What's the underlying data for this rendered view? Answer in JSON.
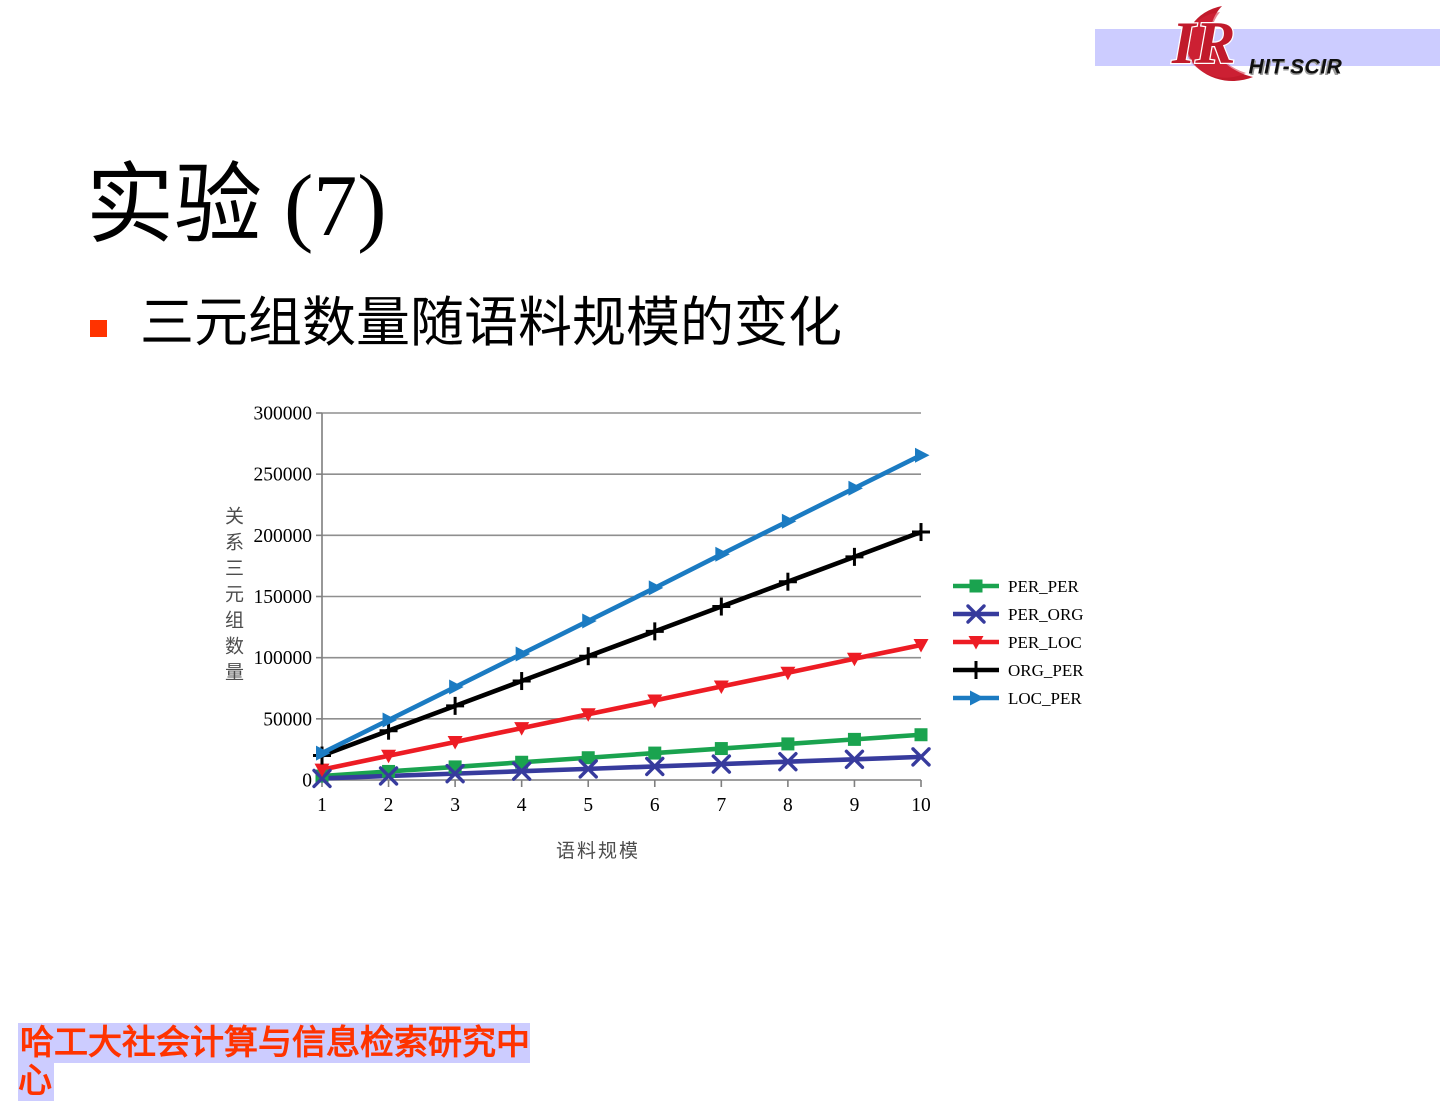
{
  "slide": {
    "title": "实验 (7)",
    "bullet": "三元组数量随语料规模的变化",
    "footer": "哈工大社会计算与信息检索研究中心",
    "accent_red": "#FF3300",
    "highlight_lavender": "#CCCCFF"
  },
  "logo": {
    "monogram": "IR",
    "org": "HIT-SCIR",
    "bar_color": "#CCCCFF",
    "brand_red": "#C11A2B"
  },
  "chart_data": {
    "type": "line",
    "x": [
      1,
      2,
      3,
      4,
      5,
      6,
      7,
      8,
      9,
      10
    ],
    "xticklabels": [
      "1",
      "2",
      "3",
      "4",
      "5",
      "6",
      "7",
      "8",
      "9",
      "10"
    ],
    "yticks": [
      0,
      50000,
      100000,
      150000,
      200000,
      250000,
      300000
    ],
    "ylim": [
      0,
      300000
    ],
    "ytick_step": 50000,
    "xlabel": "语料规模",
    "ylabel": "关系三元组数量",
    "grid": true,
    "legend_position": "right",
    "series": [
      {
        "name": "PER_PER",
        "color": "#1AA34F",
        "marker": "square",
        "values": [
          3200,
          7000,
          10700,
          14500,
          18200,
          22000,
          25700,
          29500,
          33200,
          37000
        ]
      },
      {
        "name": "PER_ORG",
        "color": "#373B9D",
        "marker": "x",
        "values": [
          1300,
          3300,
          5200,
          7200,
          9100,
          11100,
          13000,
          15000,
          16900,
          18900
        ]
      },
      {
        "name": "PER_LOC",
        "color": "#ED1C24",
        "marker": "triangle-down",
        "values": [
          8500,
          19800,
          31100,
          42400,
          53700,
          65000,
          76400,
          87700,
          99100,
          110400
        ]
      },
      {
        "name": "ORG_PER",
        "color": "#000000",
        "marker": "plus",
        "values": [
          20000,
          40300,
          60600,
          80900,
          101200,
          121500,
          141800,
          162100,
          182400,
          202700
        ]
      },
      {
        "name": "LOC_PER",
        "color": "#1B7BC2",
        "marker": "triangle-right",
        "values": [
          22000,
          49000,
          76000,
          103000,
          130000,
          157000,
          184500,
          211500,
          238500,
          265500
        ]
      }
    ],
    "style": {
      "grid_color": "#8F8F8F",
      "axis_color": "#7F7F7F",
      "tick_label_color": "#000000",
      "axis_title_color": "#4D4D4D"
    }
  }
}
